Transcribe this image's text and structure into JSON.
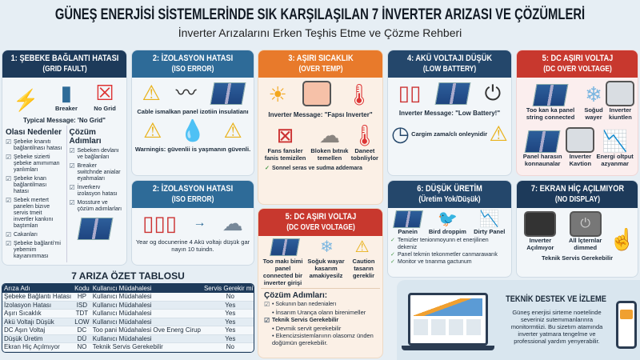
{
  "title": "GÜNEŞ ENERJİSİ SİSTEMLERİNDE SIK KARŞILAŞILAN 7 İNVERTER ARIZASI VE ÇÖZÜMLERİ",
  "subtitle": "İnverter Arızalarını Erken Teşhis Etme ve Çözme Rehberi",
  "colors": {
    "navy": "#1d3a5a",
    "blue": "#2e6b98",
    "orange": "#e87a2b",
    "red": "#c8382e",
    "background": "#e6eef4"
  },
  "card1": {
    "title": "1: ŞEBEKE BAĞLANTI HATASI",
    "sub": "(GRID FAULT)",
    "icons": [
      "power-tower-icon",
      "breaker-icon",
      "no-grid-icon"
    ],
    "labels": [
      "Breaker",
      "No Grid"
    ],
    "message": "Typical Message: 'No Grid\"",
    "causes_title": "Olası Nedenler",
    "causes": [
      "Şebeke knanıtı bağlantilnası hatası",
      "Şebeke sizierti şebeke amımıman yanlımları",
      "Şebeke knan bağlantilması hatası",
      "Sebek mertert panelen bizıve servis tmeit invertler kankını baştımları",
      "Cakanları",
      "Şebeke bağlanti'mi yebemim kayıanımması"
    ],
    "steps_title": "Çözüm Adımları",
    "steps": [
      "Sebeken devlanı ve bağlanları",
      "Breaker switchnde anialar eyahmaları",
      "İnverkerv izolasyon hatası",
      "Mossture ve çözüm adımlarları"
    ]
  },
  "card2": {
    "title": "2: İZOLASYON HATASI",
    "sub": "(ISO ERROR)",
    "caption": "Cable ismalkan panel izotiin insulatianı",
    "warning": "Warningis: güvenlii is yaşmanın güvenli."
  },
  "card2b": {
    "title": "2: İZOLASYON HATASI",
    "sub": "(ISO ERROR)",
    "caption": "Year og docunerine 4 Akü voltajı düşük gar nayın 10 tuindn."
  },
  "card3": {
    "title": "3: AŞIRI SICAKLIK",
    "sub": "(OVER TEMP)",
    "message": "Inverter Message: \"Fapsı Inverter\"",
    "items": [
      "Fans fansler fanis temizilen",
      "Bloken bıtnık temellen",
      "Daneet tobnliylor"
    ],
    "check": "Sonnel seras ve sudma addemara"
  },
  "card4": {
    "title": "4: AKÜ VOLTAJI DÜŞÜK",
    "sub": "(LOW BATTERY)",
    "message": "Inverter Message: \"Low Battery!\"",
    "note": "Cargim zama/clı onleynidir"
  },
  "card5": {
    "title": "5: DC AŞIRI VOLTAJ",
    "sub": "(DC OVER VOLTAGE)",
    "items": [
      "Too kan ka panel string connected",
      "Soğud wayer",
      "Inverter kiuntlen",
      "Panel harasın konnaunalar",
      "Inverter Kavtion",
      "Energi oltput azyanmar"
    ]
  },
  "card5b": {
    "title": "5: DC AŞIRI VOLTAJ",
    "sub": "(DC OVER VOLTAGE)",
    "items": [
      "Too makı bimi panel connected bir inverter girişi",
      "Soğuk wayar kasarım amakiyesilz",
      "Caution tasarın gereklir"
    ],
    "steps_title": "Çözüm Adımları:",
    "step1": "• Sokunın ban nedenialerı",
    "step1b": "• İnsarım Urança olann birenimeller",
    "step2": "Teknik Servis Gerekebilir",
    "step2a": "• Devmik servit gerekebilir",
    "step2b": "• Ekencizsistemlarıırın olasomz ünden doğümün gerekebilir."
  },
  "card6": {
    "title": "6: DÜŞÜK ÜRETİM",
    "sub": "(Üretim Yok/Düşük)",
    "items": [
      "Panein",
      "Bird droppim",
      "Dirty Panel"
    ],
    "checks": [
      "Temizler tenionmoyunn et enerjilinen dekeniz",
      "Panel tekmin tekonmetler canmarawarık",
      "Monitor ve tınanma gactunum"
    ]
  },
  "card7": {
    "title": "7: EKRAN HİÇ AÇILMIYOR",
    "sub": "(NO DISPLAY)",
    "items": [
      "Inverter Açılmıyor",
      "All İçternlar dimmed"
    ],
    "note": "Teknik Servis Gerekebilir"
  },
  "table": {
    "title": "7 ARIZA ÖZET TABLOSU",
    "headers": [
      "Arıza Adı",
      "Kodu",
      "Kullanıcı Müdahalesi",
      "Servis Gerekir mi?"
    ],
    "rows": [
      [
        "Şebeke Bağlantı Hatası",
        "HP",
        "Kullanıcı Müdahalesi",
        "No"
      ],
      [
        "İzolasyon Hatası",
        "ISD",
        "Kullanıcı Müdahalesi",
        "Yes"
      ],
      [
        "Aşırı Sıcaklık",
        "TDT",
        "Kullanıcı Müdahalesi",
        "Yes"
      ],
      [
        "Akü Voltajı Düşük",
        "LOW",
        "Kullanıcı Müdahalesi",
        "Yes"
      ],
      [
        "DC Aşın Voltaj",
        "DC",
        "Too pani Müdahalesi Ove Energ Cirup",
        "Yes"
      ],
      [
        "Düşük Üretim",
        "DÜ",
        "Kullanıcı Müdahalesi",
        "Yes"
      ],
      [
        "Ekran Hiç Açılmıyor",
        "NO",
        "Teknik Servis Gerekebilir",
        "No"
      ]
    ]
  },
  "support": {
    "title": "TEKNİK DESTEK VE İZLEME",
    "text": "Güneş enerjisi sirteme noetelinde severiniz sutemımanlarınra monitormtiizi. Bu sizetım atamında inverter yatmara tengelme ve professional yardım yenyerabilir."
  }
}
